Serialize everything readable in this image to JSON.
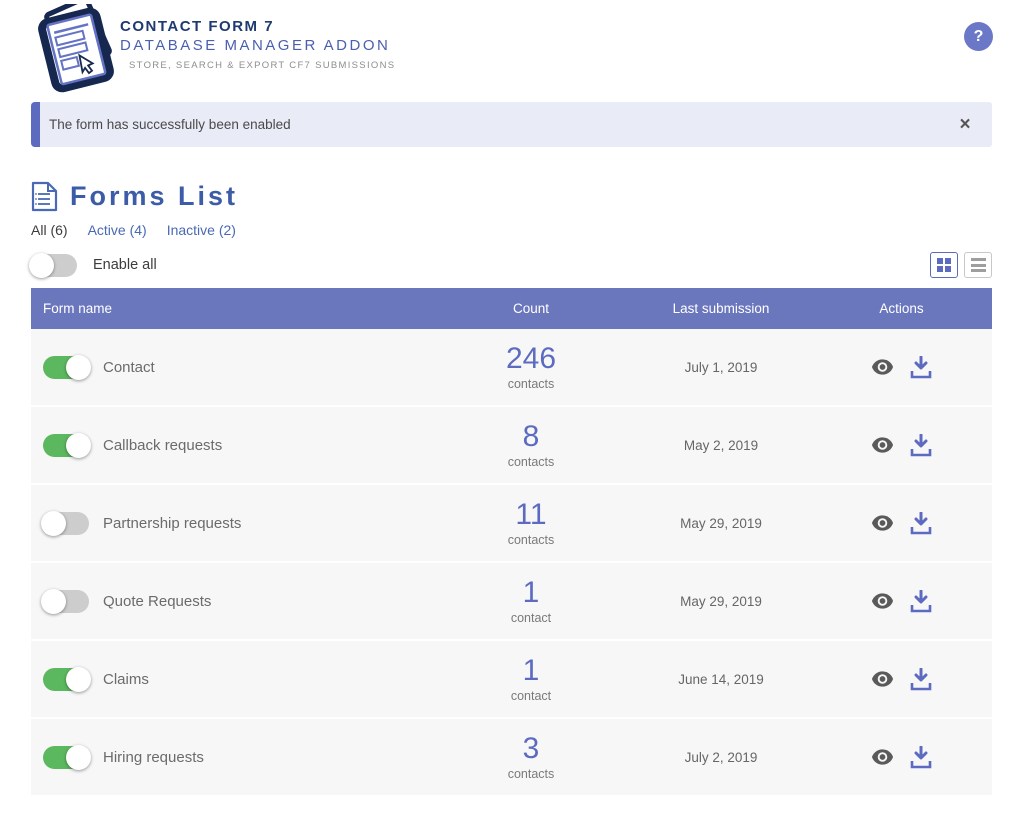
{
  "header": {
    "title_line1": "CONTACT FORM 7",
    "title_line2": "DATABASE MANAGER ADDON",
    "subtitle": "STORE, SEARCH & EXPORT CF7 SUBMISSIONS",
    "help_label": "?"
  },
  "notification": {
    "message": "The form has successfully been enabled",
    "close_label": "×"
  },
  "forms_list": {
    "title": "Forms List",
    "tabs": [
      {
        "label": "All (6)",
        "active": true
      },
      {
        "label": "Active (4)",
        "active": false
      },
      {
        "label": "Inactive (2)",
        "active": false
      }
    ],
    "enable_all_label": "Enable all",
    "view_modes": [
      "grid",
      "list"
    ],
    "table": {
      "columns": [
        "Form name",
        "Count",
        "Last submission",
        "Actions"
      ],
      "rows": [
        {
          "name": "Contact",
          "enabled": true,
          "count": "246",
          "count_unit": "contacts",
          "last_submission": "July 1, 2019"
        },
        {
          "name": "Callback requests",
          "enabled": true,
          "count": "8",
          "count_unit": "contacts",
          "last_submission": "May 2, 2019"
        },
        {
          "name": "Partnership requests",
          "enabled": false,
          "count": "11",
          "count_unit": "contacts",
          "last_submission": "May 29, 2019"
        },
        {
          "name": "Quote Requests",
          "enabled": false,
          "count": "1",
          "count_unit": "contact",
          "last_submission": "May 29, 2019"
        },
        {
          "name": "Claims",
          "enabled": true,
          "count": "1",
          "count_unit": "contact",
          "last_submission": "June 14, 2019"
        },
        {
          "name": "Hiring requests",
          "enabled": true,
          "count": "3",
          "count_unit": "contacts",
          "last_submission": "July 2, 2019"
        }
      ]
    }
  },
  "icons": {
    "help": "question-mark-circle",
    "close": "x-mark",
    "forms_list": "document-outline",
    "view_row": "eye",
    "download_row": "download-tray"
  },
  "colors": {
    "accent": "#5c6bc0",
    "table_header": "#6b77bd",
    "toggle_on": "#5cb85f",
    "banner_bg": "#e9ebf7",
    "title_dark": "#1f3a70",
    "title_light": "#4a5fae",
    "link_blue": "#4a69b4",
    "heading_blue": "#3c5ca8"
  }
}
